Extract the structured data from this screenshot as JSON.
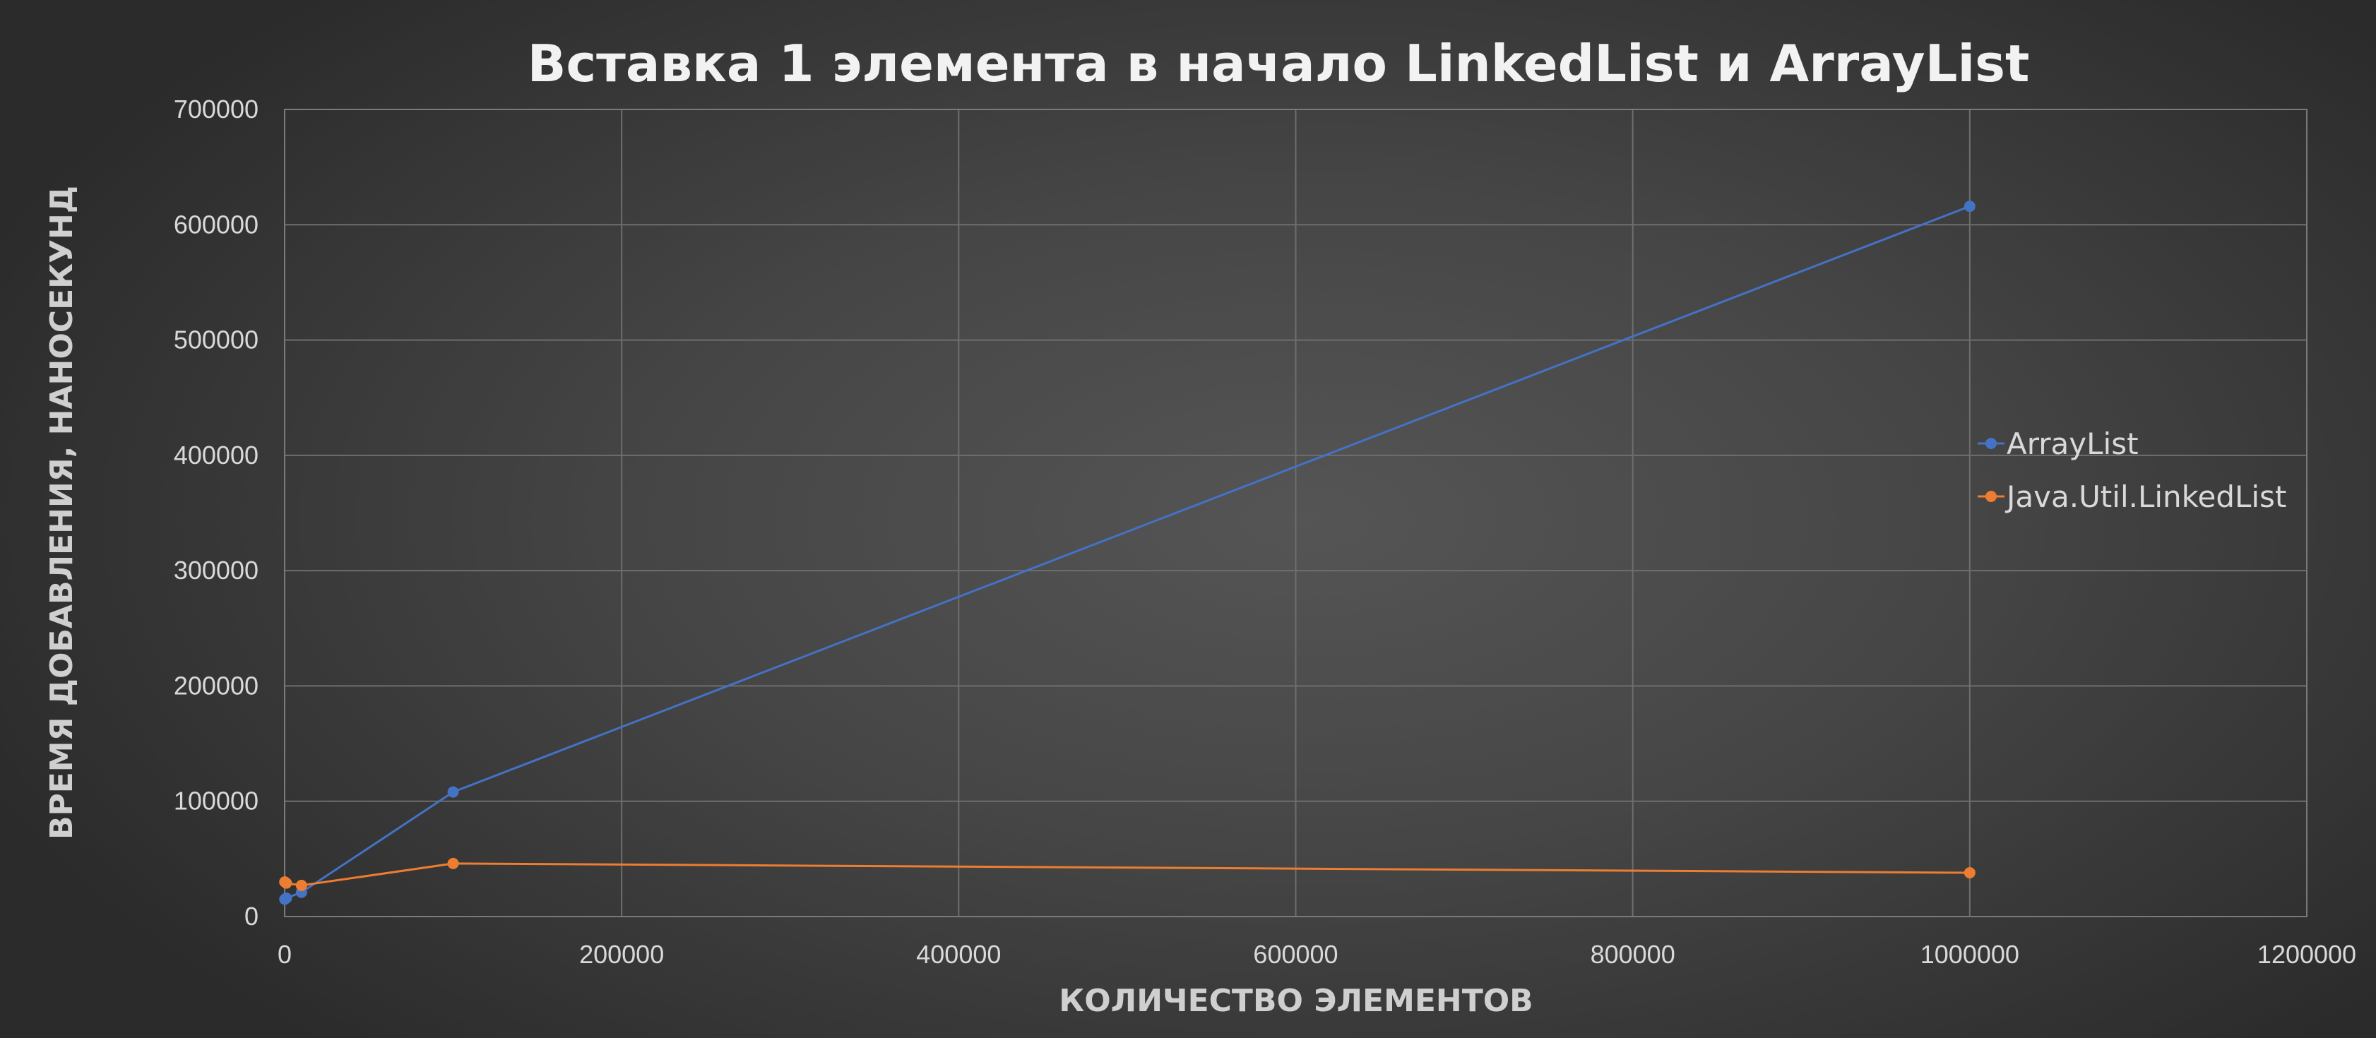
{
  "chart_data": {
    "type": "line",
    "title": "Вставка 1 элемента в начало LinkedList и ArrayList",
    "xlabel": "КОЛИЧЕСТВО ЭЛЕМЕНТОВ",
    "ylabel": "ВРЕМЯ ДОБАВЛЕНИЯ, НАНОСЕКУНД",
    "xlim": [
      0,
      1200000
    ],
    "ylim": [
      0,
      700000
    ],
    "x_ticks": [
      "0",
      "200000",
      "400000",
      "600000",
      "800000",
      "1000000",
      "1200000"
    ],
    "y_ticks": [
      "0",
      "100000",
      "200000",
      "300000",
      "400000",
      "500000",
      "600000",
      "700000"
    ],
    "grid": true,
    "legend_position": "right",
    "series": [
      {
        "name": "ArrayList",
        "color": "#4472c4",
        "x": [
          100,
          1000,
          10000,
          100000,
          1000000
        ],
        "y": [
          15000,
          16000,
          21000,
          108000,
          616000
        ]
      },
      {
        "name": "Java.Util.LinkedList",
        "color": "#ed7d31",
        "x": [
          100,
          1000,
          10000,
          100000,
          1000000
        ],
        "y": [
          30000,
          29000,
          27000,
          46000,
          38000
        ]
      }
    ]
  }
}
